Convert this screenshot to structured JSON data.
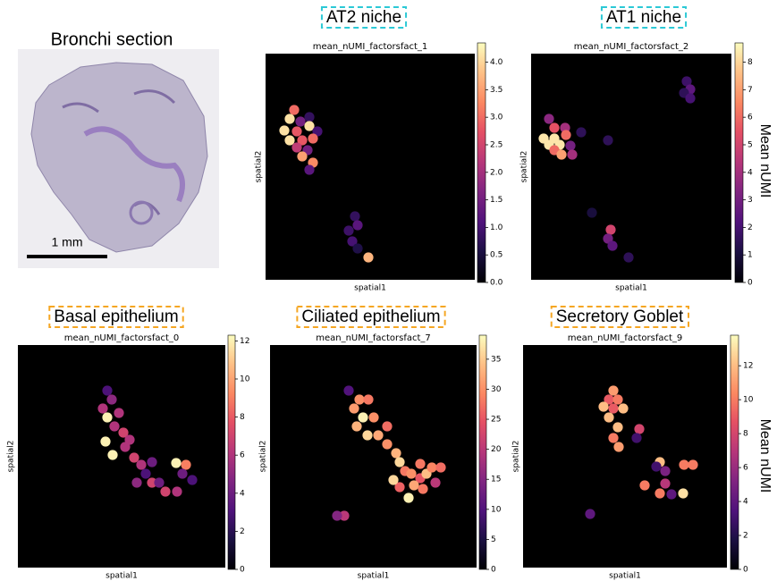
{
  "image_panel": {
    "title": "Bronchi section",
    "scale_label": "1 mm"
  },
  "chart_data": [
    {
      "type": "scatter",
      "annotation": "AT2 niche",
      "annotation_color": "#2cc9d6",
      "title": "mean_nUMI_factorsfact_1",
      "xlabel": "spatial1",
      "ylabel": "spatial2",
      "colormap": "magma",
      "xlim": [
        0,
        234
      ],
      "ylim": [
        253,
        0
      ],
      "x": [
        32,
        27,
        39,
        49,
        21,
        35,
        49,
        58,
        27,
        41,
        53,
        35,
        47,
        41,
        53,
        49,
        100,
        103,
        93,
        97,
        103,
        115
      ],
      "y": [
        63,
        73,
        76,
        71,
        86,
        87,
        81,
        87,
        97,
        97,
        95,
        105,
        108,
        115,
        122,
        130,
        182,
        192,
        198,
        210,
        218,
        228
      ],
      "values": [
        3.0,
        4.1,
        1.5,
        0.8,
        4.1,
        2.8,
        4.1,
        1.0,
        4.1,
        2.8,
        3.0,
        2.3,
        1.5,
        3.5,
        3.3,
        1.2,
        0.8,
        1.2,
        0.9,
        1.0,
        0.6,
        3.7
      ],
      "colorbar": {
        "lim": [
          0,
          4.35
        ],
        "ticks": [
          {
            "value": 0,
            "label": "0.0"
          },
          0.5,
          {
            "value": 1,
            "label": "1.0"
          },
          1.5,
          {
            "value": 2,
            "label": "2.0"
          },
          2.5,
          {
            "value": 3,
            "label": "3.0"
          },
          3.5,
          {
            "value": 4,
            "label": "4.0"
          }
        ]
      }
    },
    {
      "type": "scatter",
      "annotation": "AT1 niche",
      "annotation_color": "#2cc9d6",
      "title": "mean_nUMI_factorsfact_2",
      "xlabel": "spatial1",
      "ylabel": "spatial2",
      "colormap": "magma",
      "xlim": [
        0,
        224
      ],
      "ylim": [
        253,
        0
      ],
      "x": [
        20,
        26,
        38,
        14,
        26,
        39,
        20,
        32,
        44,
        26,
        34,
        46,
        56,
        86,
        174,
        178,
        171,
        178,
        89,
        86,
        91,
        109,
        68
      ],
      "y": [
        73,
        83,
        83,
        95,
        95,
        91,
        102,
        102,
        103,
        108,
        113,
        113,
        88,
        97,
        31,
        40,
        44,
        50,
        197,
        207,
        215,
        228,
        178
      ],
      "values": [
        3.5,
        5.5,
        4.0,
        8.3,
        8.3,
        6.0,
        8.3,
        8.3,
        3.0,
        6.0,
        7.0,
        4.0,
        1.5,
        1.5,
        1.8,
        2.5,
        1.5,
        2.0,
        5.0,
        3.0,
        2.5,
        1.5,
        1.0
      ],
      "colorbar": {
        "lim": [
          0,
          8.7
        ],
        "ticks": [
          0,
          1,
          2,
          3,
          4,
          5,
          6,
          7,
          8
        ],
        "label": "Mean nUMI"
      }
    },
    {
      "type": "scatter",
      "annotation": "Basal epithelium",
      "annotation_color": "#f5a623",
      "title": "mean_nUMI_factorsfact_0",
      "xlabel": "spatial1",
      "ylabel": "spatial2",
      "colormap": "magma",
      "xlim": [
        0,
        232
      ],
      "ylim": [
        249,
        0
      ],
      "x": [
        100,
        105,
        95,
        100,
        113,
        108,
        98,
        118,
        125,
        106,
        120,
        130,
        138,
        150,
        177,
        188,
        184,
        143,
        133,
        150,
        165,
        178,
        158,
        195
      ],
      "y": [
        51,
        61,
        71,
        81,
        76,
        91,
        108,
        98,
        106,
        123,
        114,
        126,
        134,
        131,
        132,
        134,
        144,
        144,
        154,
        154,
        164,
        164,
        154,
        151
      ],
      "values": [
        3,
        5,
        6,
        12,
        6,
        6,
        12,
        7,
        6,
        12,
        6,
        7,
        6,
        4,
        12,
        9,
        4,
        3,
        5,
        7,
        7,
        6,
        4,
        3
      ],
      "colorbar": {
        "lim": [
          0,
          12.3
        ],
        "ticks": [
          0,
          2,
          4,
          6,
          8,
          10,
          12
        ]
      }
    },
    {
      "type": "scatter",
      "annotation": "Ciliated epithelium",
      "annotation_color": "#f5a623",
      "title": "mean_nUMI_factorsfact_7",
      "xlabel": "spatial1",
      "ylabel": "spatial2",
      "colormap": "magma",
      "xlim": [
        0,
        231
      ],
      "ylim": [
        249,
        0
      ],
      "x": [
        88,
        100,
        110,
        94,
        104,
        116,
        97,
        109,
        121,
        131,
        131,
        141,
        145,
        151,
        158,
        168,
        175,
        181,
        191,
        161,
        171,
        155,
        145,
        83,
        75,
        168,
        185,
        138
      ],
      "y": [
        51,
        61,
        61,
        71,
        81,
        81,
        91,
        101,
        101,
        91,
        111,
        121,
        131,
        141,
        144,
        149,
        144,
        137,
        137,
        157,
        161,
        171,
        159,
        191,
        191,
        133,
        154,
        151
      ],
      "values": [
        10,
        30,
        28,
        31,
        38,
        30,
        33,
        36,
        32,
        27,
        30,
        33,
        36,
        28,
        30,
        25,
        34,
        29,
        27,
        32,
        28,
        38,
        26,
        20,
        15,
        28,
        20,
        36
      ],
      "colorbar": {
        "lim": [
          0,
          39
        ],
        "ticks": [
          0,
          5,
          10,
          15,
          20,
          25,
          30,
          35
        ]
      }
    },
    {
      "type": "scatter",
      "annotation": "Secretory Goblet",
      "annotation_color": "#f5a623",
      "title": "mean_nUMI_factorsfact_9",
      "xlabel": "spatial1",
      "ylabel": "spatial2",
      "colormap": "magma",
      "xlim": [
        0,
        228
      ],
      "ylim": [
        249,
        0
      ],
      "x": [
        101,
        96,
        106,
        90,
        101,
        112,
        96,
        106,
        101,
        107,
        130,
        127,
        153,
        159,
        149,
        180,
        190,
        136,
        159,
        153,
        179,
        166,
        75
      ],
      "y": [
        51,
        61,
        61,
        69,
        71,
        71,
        81,
        92,
        104,
        114,
        94,
        104,
        131,
        141,
        136,
        134,
        134,
        157,
        155,
        166,
        166,
        167,
        189
      ],
      "values": [
        11,
        9,
        10,
        12,
        9,
        12,
        12,
        12,
        10,
        11,
        8,
        3,
        12,
        5,
        3,
        10,
        10,
        10,
        7,
        10,
        13,
        4,
        4
      ],
      "colorbar": {
        "lim": [
          0,
          13.8
        ],
        "ticks": [
          0,
          2,
          4,
          6,
          8,
          10,
          12
        ],
        "label": "Mean nUMI"
      }
    }
  ]
}
